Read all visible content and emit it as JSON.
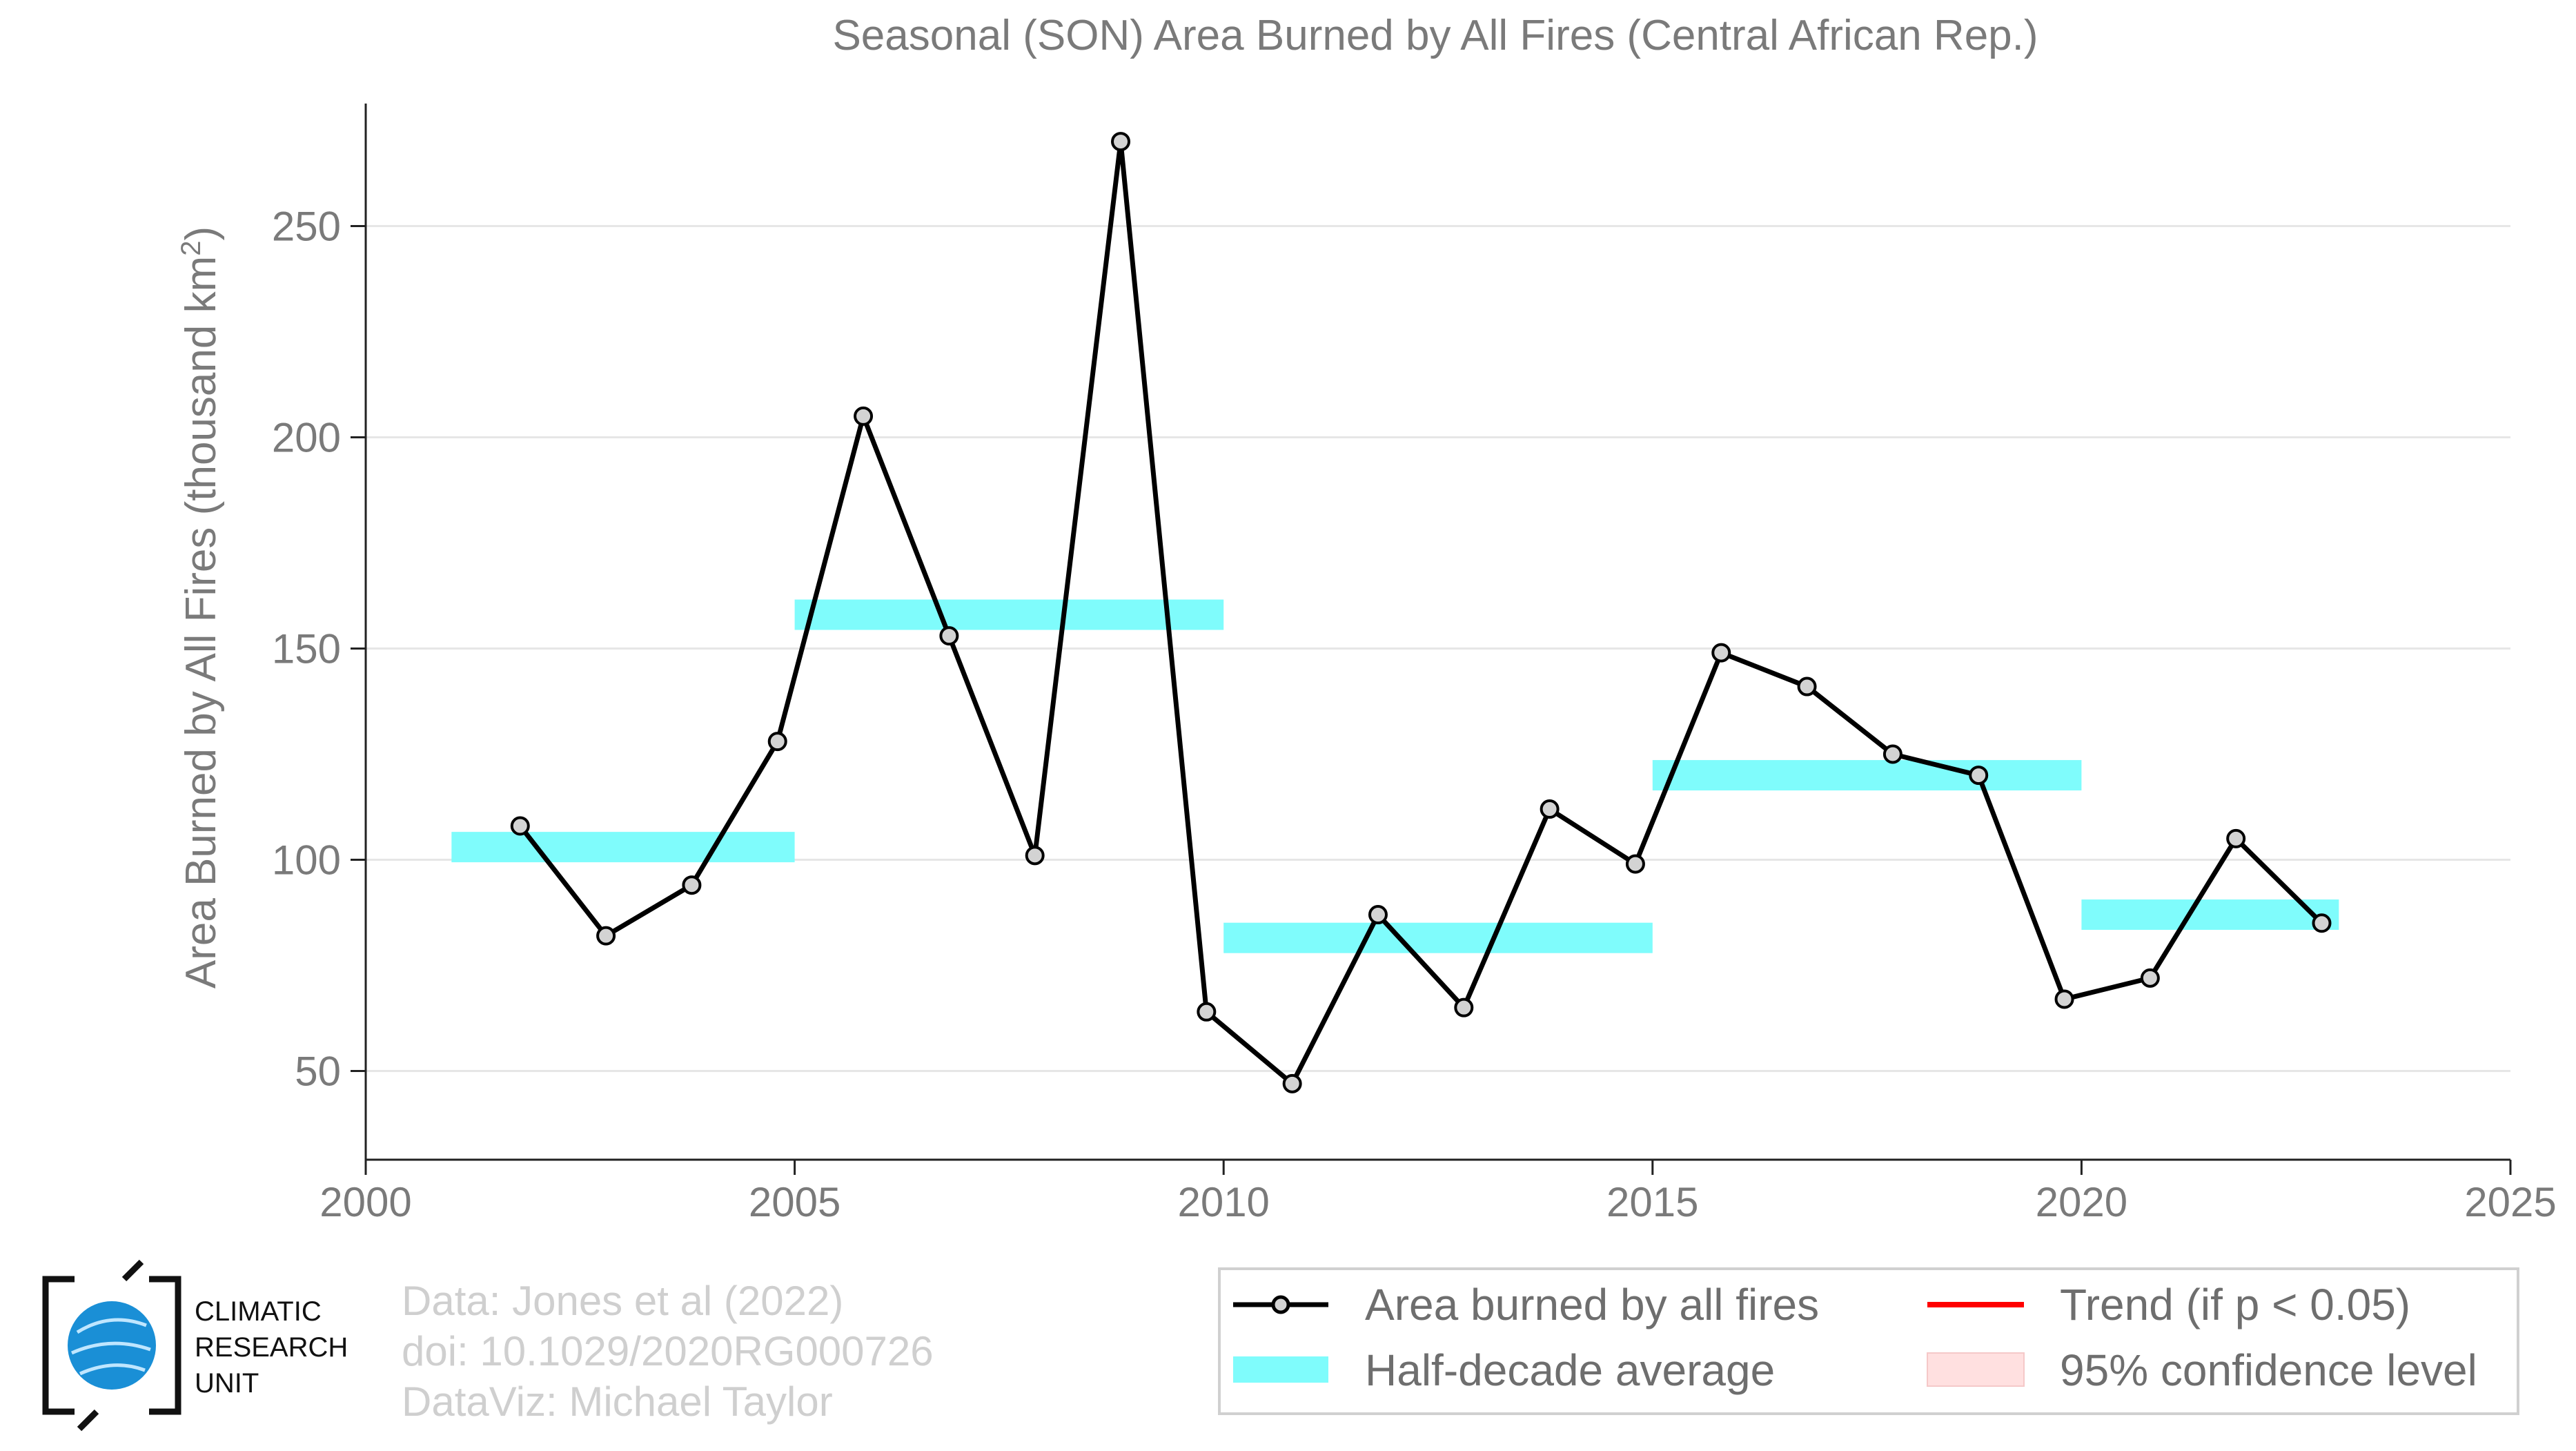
{
  "chart_data": {
    "type": "line",
    "title": "Seasonal (SON) Area Burned by All Fires (Central African Rep.)",
    "ylabel": "Area Burned by All Fires (thousand km²)",
    "xlabel": "",
    "xlim": [
      2000,
      2025
    ],
    "ylim": [
      29,
      279
    ],
    "x_ticks": [
      2000,
      2005,
      2010,
      2015,
      2020,
      2025
    ],
    "y_ticks": [
      50,
      100,
      150,
      200,
      250
    ],
    "grid": "horizontal",
    "series": [
      {
        "name": "Area burned by all fires",
        "color": "#000000",
        "marker_fill": "#d3d3d3",
        "x": [
          2001.8,
          2002.8,
          2003.8,
          2004.8,
          2005.8,
          2006.8,
          2007.8,
          2008.8,
          2009.8,
          2010.8,
          2011.8,
          2012.8,
          2013.8,
          2014.8,
          2015.8,
          2016.8,
          2017.8,
          2018.8,
          2019.8,
          2020.8,
          2021.8,
          2022.8
        ],
        "y": [
          108,
          82,
          94,
          128,
          205,
          153,
          101,
          270,
          64,
          47,
          87,
          65,
          112,
          99,
          149,
          141,
          125,
          120,
          67,
          72,
          105,
          85
        ]
      }
    ],
    "half_decade_average": {
      "name": "Half-decade average",
      "color": "#7ffcfc",
      "segments": [
        {
          "x0": 2001,
          "x1": 2005,
          "y": 103
        },
        {
          "x0": 2005,
          "x1": 2010,
          "y": 158
        },
        {
          "x0": 2010,
          "x1": 2015,
          "y": 81.5
        },
        {
          "x0": 2015,
          "x1": 2020,
          "y": 120
        },
        {
          "x0": 2020,
          "x1": 2023,
          "y": 87
        }
      ]
    },
    "legend": {
      "placement": "bottom-right",
      "items": [
        {
          "label": "Area burned by all fires",
          "kind": "line-marker",
          "color": "#000000"
        },
        {
          "label": "Trend (if p < 0.05)",
          "kind": "line",
          "color": "#ff0000"
        },
        {
          "label": "Half-decade average",
          "kind": "band",
          "color": "#7ffcfc"
        },
        {
          "label": "95% confidence level",
          "kind": "box",
          "color": "#ffe0e0"
        }
      ]
    },
    "credits": [
      "Data: Jones et al (2022)",
      "doi: 10.1029/2020RG000726",
      "DataViz: Michael Taylor"
    ]
  },
  "logo": {
    "lines": [
      "CLIMATIC",
      "RESEARCH",
      "UNIT"
    ],
    "globe_color": "#1a8fd6"
  }
}
